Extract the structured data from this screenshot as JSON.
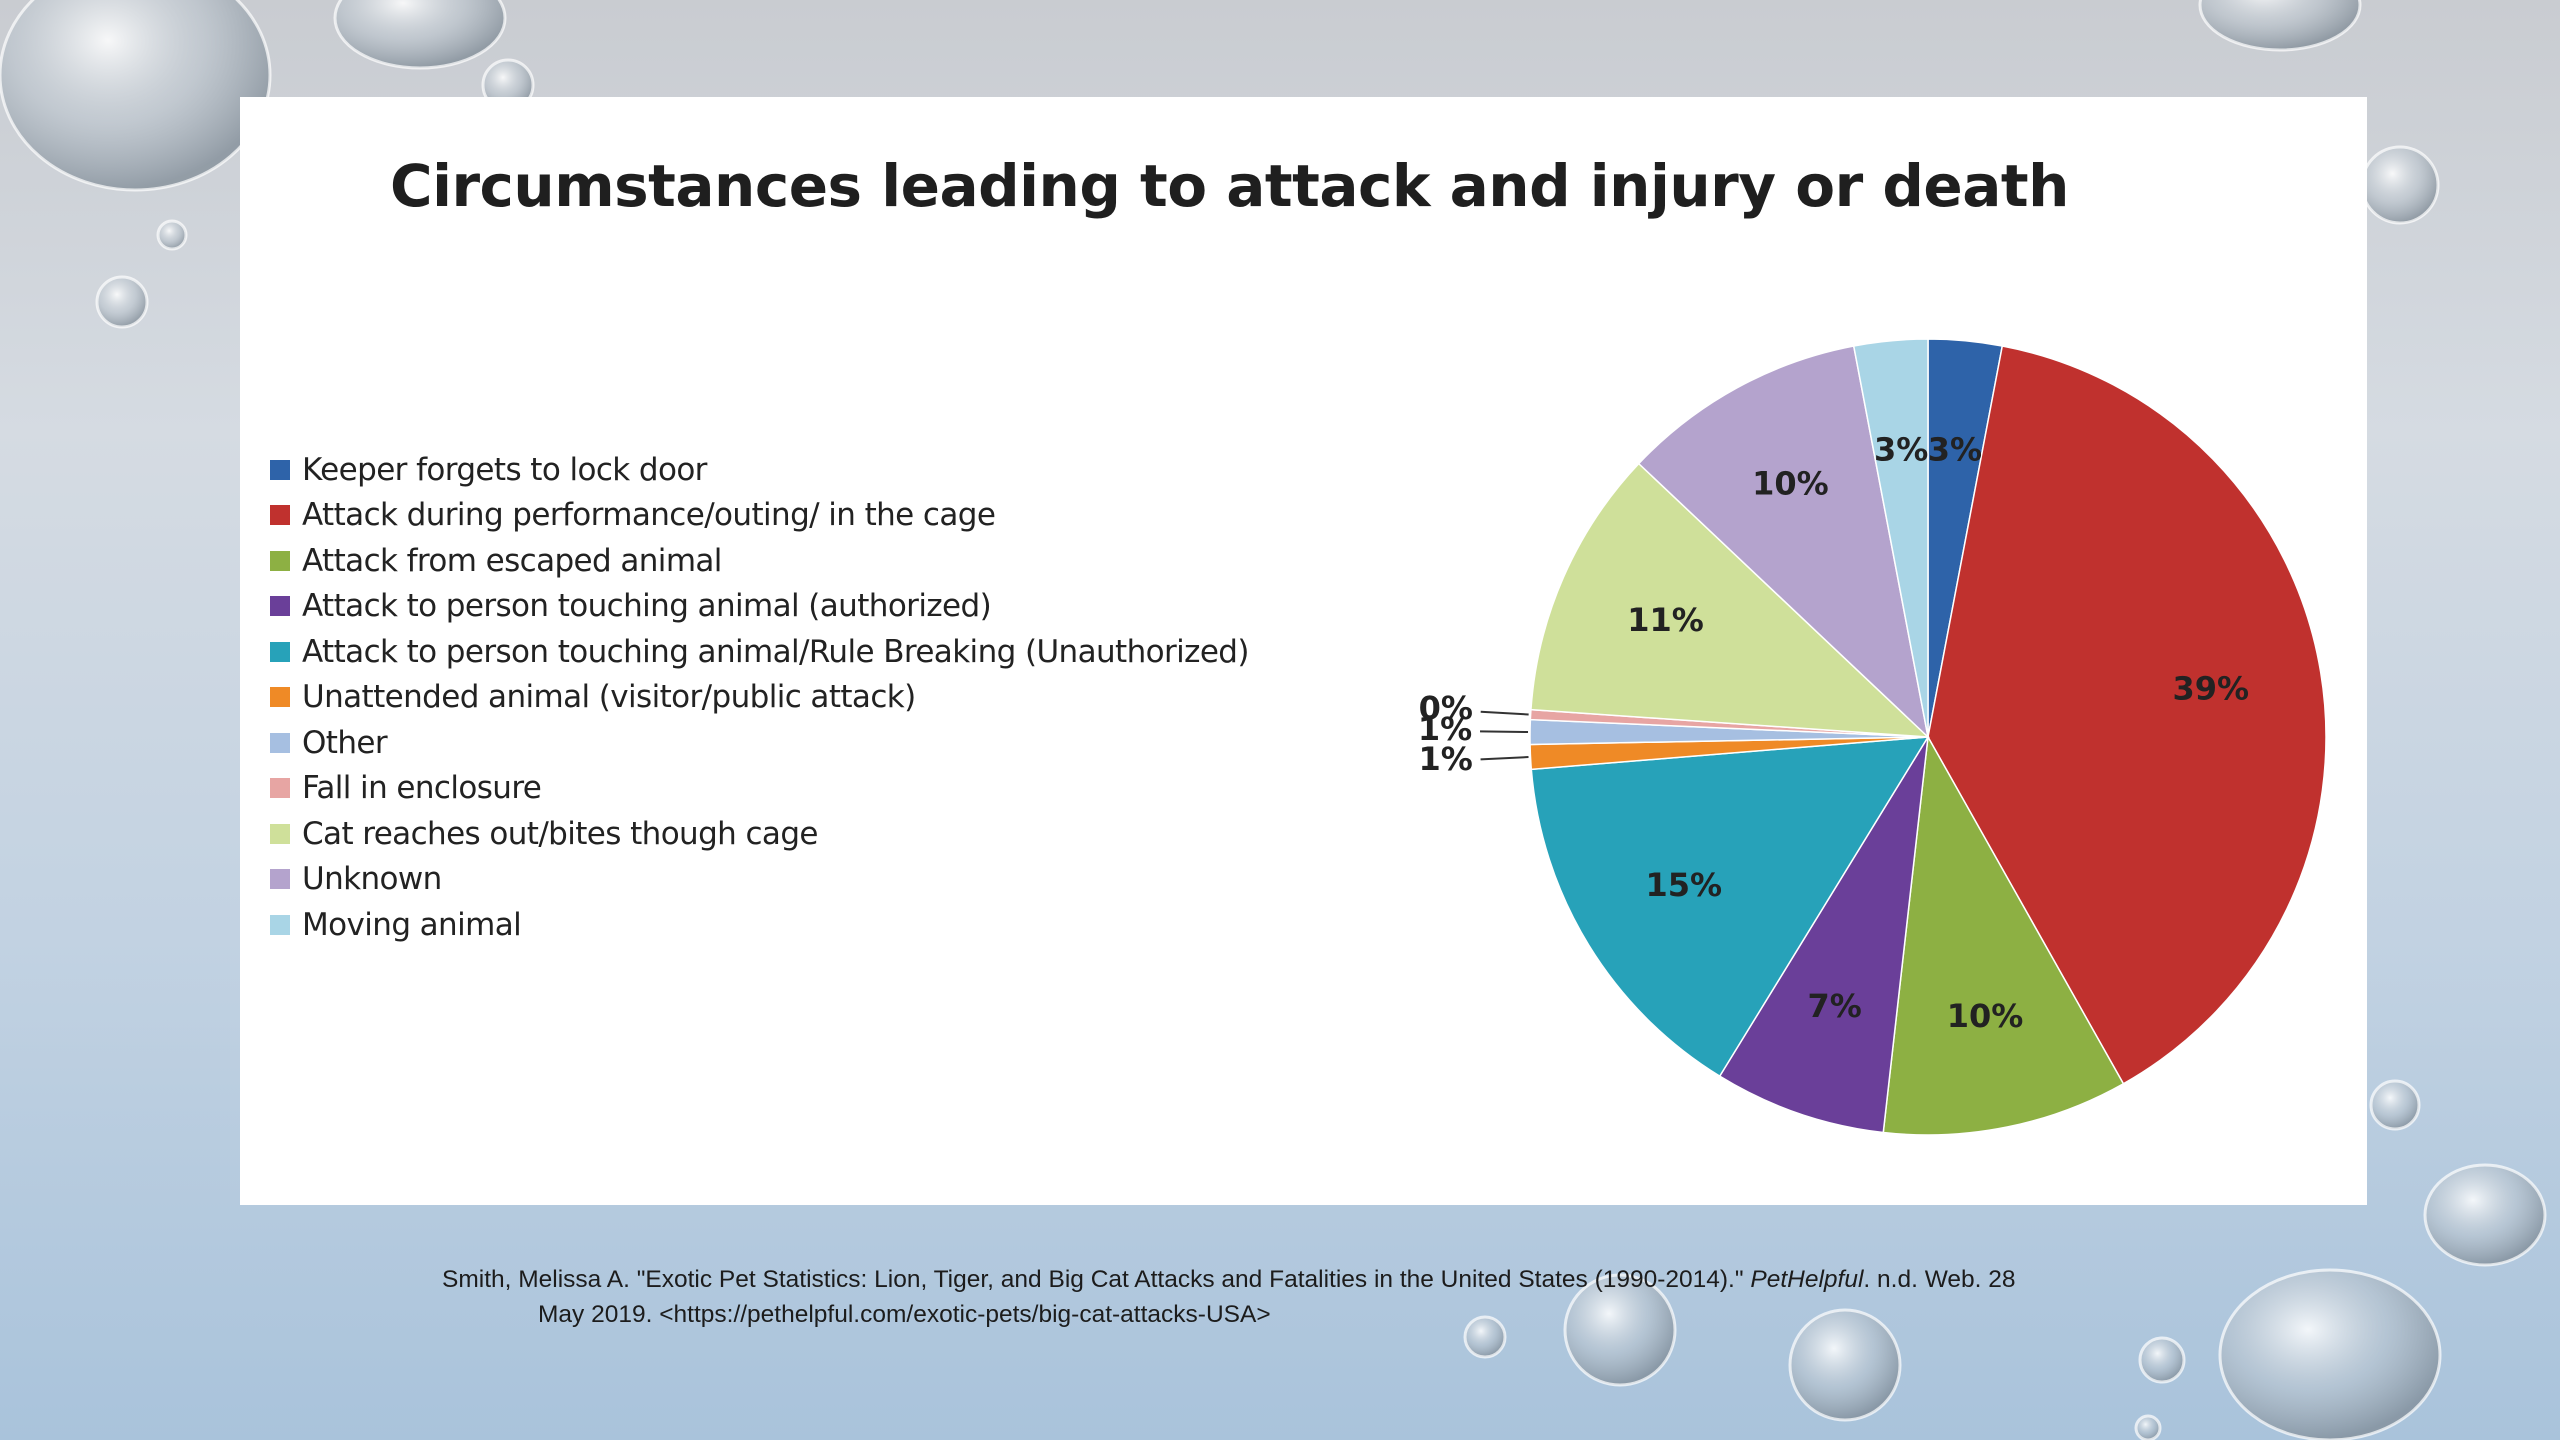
{
  "chart_data": {
    "type": "pie",
    "title": "Circumstances leading to attack and injury or death",
    "legend_position": "left",
    "slices": [
      {
        "label": "Keeper forgets to lock door",
        "value": 3,
        "value_label": "3%",
        "color": "#2e63a9"
      },
      {
        "label": "Attack during performance/outing/ in the cage",
        "value": 39,
        "value_label": "39%",
        "color": "#c0312e"
      },
      {
        "label": "Attack from escaped animal",
        "value": 10,
        "value_label": "10%",
        "color": "#8db043"
      },
      {
        "label": "Attack to person touching animal (authorized)",
        "value": 7,
        "value_label": "7%",
        "color": "#6a3f99"
      },
      {
        "label": "Attack to person touching animal/Rule Breaking (Unauthorized)",
        "value": 15,
        "value_label": "15%",
        "color": "#27a2b9"
      },
      {
        "label": "Unattended animal (visitor/public attack)",
        "value": 1,
        "value_label": "1%",
        "color": "#ef8a26"
      },
      {
        "label": "Other",
        "value": 1,
        "value_label": "1%",
        "color": "#a6bfe1"
      },
      {
        "label": "Fall in enclosure",
        "value": 0.4,
        "value_label": "0%",
        "color": "#e7a5a3"
      },
      {
        "label": "Cat reaches out/bites though cage",
        "value": 11,
        "value_label": "11%",
        "color": "#cfe09a"
      },
      {
        "label": "Unknown",
        "value": 10,
        "value_label": "10%",
        "color": "#b4a3cd"
      },
      {
        "label": "Moving animal",
        "value": 3,
        "value_label": "3%",
        "color": "#a9d5e6"
      }
    ]
  },
  "citation": {
    "line1_before": "Smith, Melissa A. \"Exotic Pet Statistics: Lion, Tiger, and Big Cat Attacks and Fatalities in the United States (1990-2014).\" ",
    "source": "PetHelpful",
    "line1_after": ". n.d. Web. 28",
    "line2": "May 2019. <https://pethelpful.com/exotic-pets/big-cat-attacks-USA>"
  }
}
